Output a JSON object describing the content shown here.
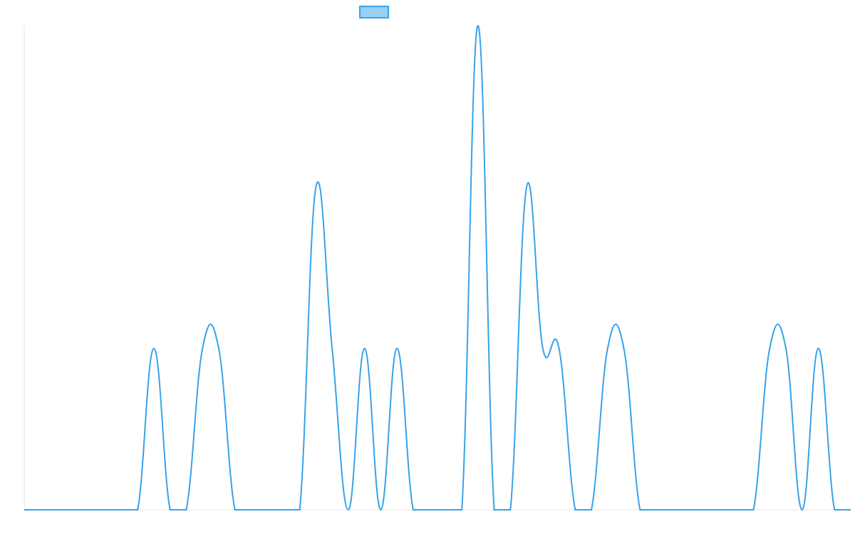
{
  "chart_data": {
    "type": "line",
    "title": "",
    "xlabel": "",
    "ylabel": "",
    "legend": {
      "position": "top",
      "entries": [
        {
          "label": ""
        }
      ]
    },
    "grid": false,
    "ylim": [
      0,
      3
    ],
    "x": [
      0,
      1,
      2,
      3,
      4,
      5,
      6,
      7,
      8,
      9,
      10,
      11,
      12,
      13,
      14,
      15,
      16,
      17,
      18,
      19,
      20,
      21,
      22,
      23,
      24,
      25,
      26,
      27,
      28,
      29,
      30,
      31,
      32,
      33,
      34,
      35,
      36,
      37,
      38,
      39,
      40,
      41,
      42,
      43,
      44,
      45,
      46,
      47,
      48,
      49,
      50,
      51
    ],
    "series": [
      {
        "color": "#36a2eb",
        "values": [
          0,
          0,
          0,
          0,
          0,
          0,
          0,
          0,
          1,
          0,
          0,
          1,
          1,
          0,
          0,
          0,
          0,
          0,
          2,
          1,
          0,
          1,
          0,
          1,
          0,
          0,
          0,
          0,
          3,
          0,
          0,
          2,
          1,
          1,
          0,
          0,
          1,
          1,
          0,
          0,
          0,
          0,
          0,
          0,
          0,
          0,
          1,
          1,
          0,
          1,
          0,
          0
        ]
      }
    ]
  }
}
